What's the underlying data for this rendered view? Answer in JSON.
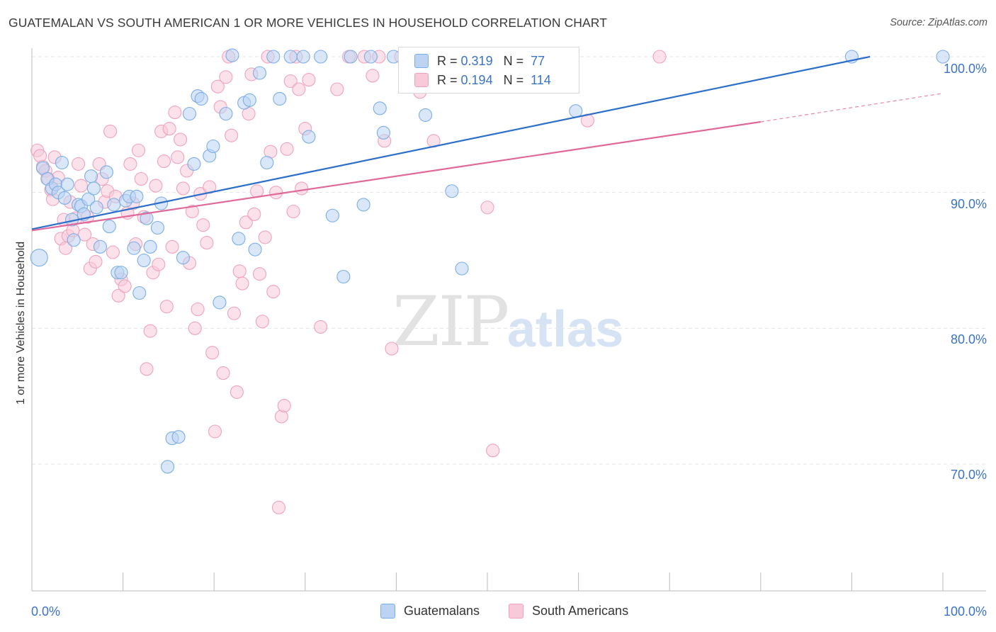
{
  "title": "GUATEMALAN VS SOUTH AMERICAN 1 OR MORE VEHICLES IN HOUSEHOLD CORRELATION CHART",
  "source": "Source: ZipAtlas.com",
  "watermark": {
    "zip": "ZIP",
    "atlas": "atlas"
  },
  "legend": {
    "r_label": "R =",
    "n_label": "N =",
    "rows": [
      {
        "r": "0.319",
        "n": "77"
      },
      {
        "r": "0.194",
        "n": "114"
      }
    ]
  },
  "chart_data": {
    "type": "scatter",
    "xlabel": "",
    "ylabel": "1 or more Vehicles in Household",
    "xlim": [
      0,
      100
    ],
    "ylim": [
      60,
      100.5
    ],
    "x_tick_labels": [
      "0.0%",
      "100.0%"
    ],
    "y_tick_labels": [
      "100.0%",
      "90.0%",
      "80.0%",
      "70.0%"
    ],
    "y_ticks": [
      100,
      90,
      80,
      70
    ],
    "grid": "horizontal dashed",
    "legend_position": "top-center",
    "series": [
      {
        "name": "Guatemalans",
        "color": "#7aaee8",
        "fill": "#bcd4f2",
        "line_color": "#2b6fcb",
        "trend": {
          "x0": 0,
          "y0": 87.3,
          "x1": 92,
          "y1": 100
        },
        "points": [
          [
            0.8,
            85.2
          ],
          [
            1.2,
            91.8
          ],
          [
            1.7,
            91.0
          ],
          [
            2.2,
            90.3
          ],
          [
            2.6,
            90.6
          ],
          [
            2.9,
            90.0
          ],
          [
            3.3,
            92.2
          ],
          [
            3.6,
            89.6
          ],
          [
            3.9,
            90.6
          ],
          [
            4.4,
            88.0
          ],
          [
            4.6,
            86.5
          ],
          [
            5.1,
            89.1
          ],
          [
            5.4,
            89.0
          ],
          [
            5.7,
            88.4
          ],
          [
            6.2,
            89.5
          ],
          [
            6.5,
            91.2
          ],
          [
            6.8,
            90.3
          ],
          [
            7.1,
            88.9
          ],
          [
            7.5,
            86.0
          ],
          [
            8.2,
            91.5
          ],
          [
            8.5,
            87.5
          ],
          [
            9.0,
            89.1
          ],
          [
            9.4,
            84.1
          ],
          [
            9.8,
            84.1
          ],
          [
            10.3,
            89.4
          ],
          [
            10.7,
            89.7
          ],
          [
            11.2,
            85.9
          ],
          [
            11.5,
            89.7
          ],
          [
            11.8,
            82.6
          ],
          [
            12.3,
            85.0
          ],
          [
            12.6,
            88.1
          ],
          [
            13.0,
            86.0
          ],
          [
            13.8,
            87.4
          ],
          [
            14.2,
            89.2
          ],
          [
            14.9,
            69.8
          ],
          [
            15.4,
            71.9
          ],
          [
            16.1,
            72.0
          ],
          [
            16.6,
            85.2
          ],
          [
            17.3,
            95.8
          ],
          [
            17.8,
            92.1
          ],
          [
            18.2,
            97.1
          ],
          [
            18.6,
            96.9
          ],
          [
            19.5,
            92.7
          ],
          [
            19.9,
            93.4
          ],
          [
            20.6,
            81.9
          ],
          [
            21.3,
            95.8
          ],
          [
            22.0,
            100.1
          ],
          [
            22.7,
            86.6
          ],
          [
            23.3,
            96.6
          ],
          [
            23.9,
            96.8
          ],
          [
            24.5,
            85.8
          ],
          [
            25.0,
            98.8
          ],
          [
            25.8,
            92.2
          ],
          [
            26.5,
            100.0
          ],
          [
            27.2,
            96.9
          ],
          [
            28.4,
            100.0
          ],
          [
            29.8,
            100.0
          ],
          [
            30.4,
            94.1
          ],
          [
            31.7,
            100.0
          ],
          [
            33.0,
            88.3
          ],
          [
            34.2,
            83.8
          ],
          [
            35.0,
            100.0
          ],
          [
            36.4,
            89.1
          ],
          [
            37.2,
            100.0
          ],
          [
            38.2,
            96.2
          ],
          [
            38.6,
            94.4
          ],
          [
            39.7,
            100.0
          ],
          [
            42.0,
            100.0
          ],
          [
            43.2,
            95.7
          ],
          [
            44.8,
            100.0
          ],
          [
            46.1,
            90.1
          ],
          [
            47.2,
            84.4
          ],
          [
            52.3,
            100.0
          ],
          [
            58.1,
            97.8
          ],
          [
            59.7,
            96.0
          ],
          [
            90.0,
            100.0
          ],
          [
            100.0,
            100.0
          ]
        ]
      },
      {
        "name": "South Americans",
        "color": "#f0a2bc",
        "fill": "#f8cad9",
        "line_color": "#e1689a",
        "trend": {
          "x0": 0,
          "y0": 87.2,
          "x1": 80,
          "y1": 95.2
        },
        "trend_dashed": {
          "x0": 80,
          "y0": 95.2,
          "x1": 100,
          "y1": 97.3
        },
        "points": [
          [
            0.6,
            93.1
          ],
          [
            0.9,
            92.7
          ],
          [
            1.2,
            91.9
          ],
          [
            1.5,
            91.6
          ],
          [
            1.8,
            91.0
          ],
          [
            2.1,
            90.2
          ],
          [
            2.3,
            89.5
          ],
          [
            2.5,
            92.6
          ],
          [
            2.9,
            91.1
          ],
          [
            3.2,
            86.6
          ],
          [
            3.5,
            88.0
          ],
          [
            3.7,
            85.9
          ],
          [
            4.0,
            86.8
          ],
          [
            4.2,
            89.3
          ],
          [
            4.5,
            87.2
          ],
          [
            4.8,
            88.1
          ],
          [
            5.1,
            92.1
          ],
          [
            5.4,
            90.5
          ],
          [
            5.8,
            86.9
          ],
          [
            6.1,
            88.2
          ],
          [
            6.4,
            84.4
          ],
          [
            6.7,
            86.2
          ],
          [
            7.0,
            84.9
          ],
          [
            7.4,
            92.1
          ],
          [
            7.7,
            91.0
          ],
          [
            8.0,
            89.3
          ],
          [
            8.3,
            90.1
          ],
          [
            8.6,
            94.5
          ],
          [
            8.9,
            85.6
          ],
          [
            9.2,
            89.7
          ],
          [
            9.5,
            82.4
          ],
          [
            9.8,
            83.6
          ],
          [
            10.2,
            83.1
          ],
          [
            10.5,
            88.5
          ],
          [
            10.8,
            92.1
          ],
          [
            11.1,
            89.2
          ],
          [
            11.4,
            86.2
          ],
          [
            11.7,
            93.1
          ],
          [
            12.0,
            91.0
          ],
          [
            12.3,
            88.2
          ],
          [
            12.6,
            77.0
          ],
          [
            13.0,
            79.8
          ],
          [
            13.3,
            84.1
          ],
          [
            13.6,
            90.5
          ],
          [
            13.9,
            84.7
          ],
          [
            14.2,
            94.5
          ],
          [
            14.5,
            92.3
          ],
          [
            14.8,
            81.6
          ],
          [
            15.1,
            94.7
          ],
          [
            15.4,
            86.0
          ],
          [
            15.7,
            95.9
          ],
          [
            16.0,
            92.6
          ],
          [
            16.3,
            93.9
          ],
          [
            16.6,
            90.3
          ],
          [
            17.0,
            91.6
          ],
          [
            17.3,
            84.8
          ],
          [
            17.6,
            88.6
          ],
          [
            17.9,
            80.0
          ],
          [
            18.2,
            81.4
          ],
          [
            18.5,
            89.9
          ],
          [
            18.8,
            87.6
          ],
          [
            19.2,
            86.3
          ],
          [
            19.5,
            90.4
          ],
          [
            19.8,
            78.2
          ],
          [
            20.1,
            72.4
          ],
          [
            20.4,
            97.8
          ],
          [
            20.7,
            96.3
          ],
          [
            21.0,
            76.7
          ],
          [
            21.3,
            98.5
          ],
          [
            21.6,
            100.0
          ],
          [
            21.9,
            94.2
          ],
          [
            22.2,
            81.1
          ],
          [
            22.5,
            75.3
          ],
          [
            22.8,
            84.2
          ],
          [
            23.1,
            83.3
          ],
          [
            23.5,
            87.8
          ],
          [
            23.8,
            95.8
          ],
          [
            24.1,
            98.7
          ],
          [
            24.4,
            88.4
          ],
          [
            24.7,
            90.1
          ],
          [
            25.0,
            84.0
          ],
          [
            25.3,
            80.5
          ],
          [
            25.6,
            86.7
          ],
          [
            25.9,
            100.0
          ],
          [
            26.2,
            93.0
          ],
          [
            26.5,
            82.7
          ],
          [
            26.8,
            90.0
          ],
          [
            27.1,
            66.8
          ],
          [
            27.4,
            73.5
          ],
          [
            27.7,
            74.3
          ],
          [
            28.0,
            93.2
          ],
          [
            28.4,
            98.2
          ],
          [
            28.7,
            88.6
          ],
          [
            29.0,
            100.0
          ],
          [
            29.3,
            97.6
          ],
          [
            29.6,
            90.3
          ],
          [
            30.0,
            94.7
          ],
          [
            30.4,
            98.3
          ],
          [
            31.7,
            80.1
          ],
          [
            33.5,
            97.6
          ],
          [
            34.8,
            100.0
          ],
          [
            36.5,
            100.0
          ],
          [
            37.4,
            98.6
          ],
          [
            38.1,
            100.0
          ],
          [
            38.7,
            93.8
          ],
          [
            39.5,
            78.5
          ],
          [
            40.5,
            100.0
          ],
          [
            42.6,
            97.4
          ],
          [
            44.1,
            93.8
          ],
          [
            47.6,
            100.0
          ],
          [
            50.0,
            88.9
          ],
          [
            50.6,
            71.0
          ],
          [
            61.0,
            95.3
          ],
          [
            68.9,
            100.0
          ]
        ]
      }
    ]
  }
}
